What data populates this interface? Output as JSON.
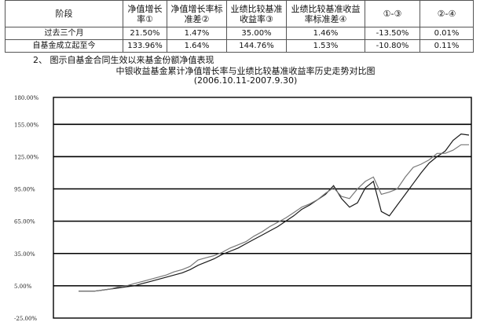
{
  "table": {
    "headers": [
      "阶段",
      "净值增长率①",
      "净值增长率标准差②",
      "业绩比较基准收益率③",
      "业绩比较基准收益率标准差④",
      "①-③",
      "②-④"
    ],
    "rows": [
      [
        "过去三个月",
        "21.50%",
        "1.47%",
        "35.00%",
        "1.46%",
        "-13.50%",
        "0.01%"
      ],
      [
        "自基金成立起至今",
        "133.96%",
        "1.64%",
        "144.76%",
        "1.53%",
        "-10.80%",
        "0.11%"
      ]
    ]
  },
  "section_heading": "2、 图示自基金合同生效以来基金份额净值表现",
  "chart_data": {
    "type": "line",
    "title": "中银收益基金累计净值增长率与业绩比较基准收益率历史走势对比图",
    "subtitle": "(2006.10.11-2007.9.30)",
    "xlabel": "",
    "ylabel": "",
    "ylim": [
      -25,
      180
    ],
    "yticks": [
      -25,
      5,
      35,
      65,
      95,
      125,
      155,
      180
    ],
    "ytick_labels": [
      "-25.00%",
      "5.00%",
      "35.00%",
      "65.00%",
      "95.00%",
      "125.00%",
      "155.00%",
      "180.00%"
    ],
    "grid": true,
    "x_count": 50,
    "series": [
      {
        "color": "#1a1a1a",
        "values": [
          0,
          0,
          0,
          1,
          2,
          3,
          4,
          5,
          7,
          9,
          11,
          13,
          15,
          17,
          20,
          24,
          27,
          30,
          34,
          37,
          40,
          44,
          48,
          52,
          56,
          60,
          65,
          70,
          76,
          80,
          85,
          90,
          98,
          86,
          78,
          82,
          96,
          102,
          74,
          70,
          80,
          90,
          100,
          110,
          119,
          125,
          130,
          140,
          146,
          145
        ]
      },
      {
        "color": "#777777",
        "values": [
          0,
          0,
          0,
          1,
          2,
          4,
          5,
          7,
          9,
          11,
          13,
          15,
          18,
          20,
          23,
          29,
          31,
          33,
          36,
          40,
          43,
          46,
          51,
          55,
          60,
          64,
          68,
          73,
          78,
          81,
          85,
          91,
          96,
          88,
          86,
          95,
          102,
          106,
          90,
          92,
          95,
          106,
          115,
          118,
          122,
          128,
          128,
          131,
          136,
          136
        ]
      }
    ]
  }
}
